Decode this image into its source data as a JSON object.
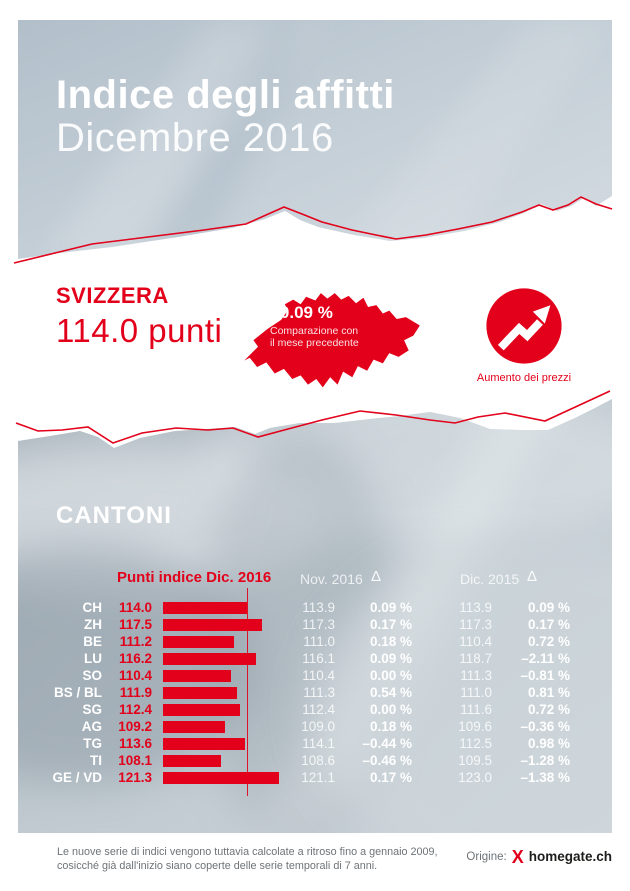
{
  "header": {
    "title": "Indice degli affitti",
    "subtitle": "Dicembre 2016"
  },
  "summary": {
    "region_label": "SVIZZERA",
    "points_text": "114.0 punti",
    "map_change_value": "+0.09 %",
    "map_caption_line1": "Comparazione con",
    "map_caption_line2": "il mese precedente",
    "trend_caption": "Aumento dei prezzi"
  },
  "cantons": {
    "heading": "CANTONI",
    "col_points_header": "Punti indice Dic. 2016",
    "col_nov_header": "Nov. 2016",
    "col_dic_header": "Dic. 2015",
    "delta_symbol": "Δ"
  },
  "rows": [
    {
      "canton": "CH",
      "points": "114.0",
      "nov": "113.9",
      "delta_nov": "0.09 %",
      "dic": "113.9",
      "delta_dic": "0.09 %"
    },
    {
      "canton": "ZH",
      "points": "117.5",
      "nov": "117.3",
      "delta_nov": "0.17 %",
      "dic": "117.3",
      "delta_dic": "0.17 %"
    },
    {
      "canton": "BE",
      "points": "111.2",
      "nov": "111.0",
      "delta_nov": "0.18 %",
      "dic": "110.4",
      "delta_dic": "0.72 %"
    },
    {
      "canton": "LU",
      "points": "116.2",
      "nov": "116.1",
      "delta_nov": "0.09 %",
      "dic": "118.7",
      "delta_dic": "–2.11 %"
    },
    {
      "canton": "SO",
      "points": "110.4",
      "nov": "110.4",
      "delta_nov": "0.00 %",
      "dic": "111.3",
      "delta_dic": "–0.81 %"
    },
    {
      "canton": "BS / BL",
      "points": "111.9",
      "nov": "111.3",
      "delta_nov": "0.54 %",
      "dic": "111.0",
      "delta_dic": "0.81 %"
    },
    {
      "canton": "SG",
      "points": "112.4",
      "nov": "112.4",
      "delta_nov": "0.00 %",
      "dic": "111.6",
      "delta_dic": "0.72 %"
    },
    {
      "canton": "AG",
      "points": "109.2",
      "nov": "109.0",
      "delta_nov": "0.18 %",
      "dic": "109.6",
      "delta_dic": "–0.36 %"
    },
    {
      "canton": "TG",
      "points": "113.6",
      "nov": "114.1",
      "delta_nov": "–0.44 %",
      "dic": "112.5",
      "delta_dic": "0.98 %"
    },
    {
      "canton": "TI",
      "points": "108.1",
      "nov": "108.6",
      "delta_nov": "–0.46 %",
      "dic": "109.5",
      "delta_dic": "–1.28 %"
    },
    {
      "canton": "GE / VD",
      "points": "121.3",
      "nov": "121.1",
      "delta_nov": "0.17 %",
      "dic": "123.0",
      "delta_dic": "–1.38 %"
    }
  ],
  "chart_data": {
    "type": "bar",
    "orientation": "horizontal",
    "title": "Punti indice Dic. 2016",
    "categories": [
      "CH",
      "ZH",
      "BE",
      "LU",
      "SO",
      "BS / BL",
      "SG",
      "AG",
      "TG",
      "TI",
      "GE / VD"
    ],
    "series": [
      {
        "name": "Punti indice Dic. 2016",
        "values": [
          114.0,
          117.5,
          111.2,
          116.2,
          110.4,
          111.9,
          112.4,
          109.2,
          113.6,
          108.1,
          121.3
        ]
      },
      {
        "name": "Nov. 2016",
        "values": [
          113.9,
          117.3,
          111.0,
          116.1,
          110.4,
          111.3,
          112.4,
          109.0,
          114.1,
          108.6,
          121.1
        ]
      },
      {
        "name": "Δ vs Nov. 2016",
        "values": [
          "0.09 %",
          "0.17 %",
          "0.18 %",
          "0.09 %",
          "0.00 %",
          "0.54 %",
          "0.00 %",
          "0.18 %",
          "–0.44 %",
          "–0.46 %",
          "0.17 %"
        ]
      },
      {
        "name": "Dic. 2015",
        "values": [
          113.9,
          117.3,
          110.4,
          118.7,
          111.3,
          111.0,
          111.6,
          109.6,
          112.5,
          109.5,
          123.0
        ]
      },
      {
        "name": "Δ vs Dic. 2015",
        "values": [
          "0.09 %",
          "0.17 %",
          "0.72 %",
          "–2.11 %",
          "–0.81 %",
          "0.81 %",
          "0.72 %",
          "–0.36 %",
          "0.98 %",
          "–1.28 %",
          "–1.38 %"
        ]
      }
    ],
    "bar_axis": {
      "min": 95,
      "reference_line": 114.0
    },
    "national_index": {
      "label": "SVIZZERA",
      "value": 114.0,
      "monthly_change": "+0.09 %"
    },
    "legend_position": "none",
    "grid": false
  },
  "footer": {
    "note_line1": "Le nuove serie di indici vengono tuttavia calcolate a ritroso fino a gennaio 2009,",
    "note_line2": "cosicché già dall'inizio siano coperte delle serie temporali di 7 anni.",
    "origin_label": "Origine:",
    "brand_mark": "X",
    "brand_name": "homegate.ch"
  },
  "colors": {
    "red": "#e2001a",
    "panel_light": "#d3dbe1",
    "panel_dark": "#b4c0cb",
    "band_light": "#d2dade",
    "band_dark": "#9aa6b0"
  }
}
